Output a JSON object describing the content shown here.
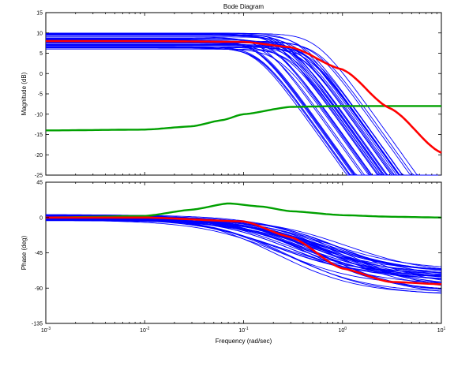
{
  "figure": {
    "title": "Bode Diagram",
    "xlabel": "Frequency  (rad/sec)"
  },
  "colors": {
    "nominal": "#ff0000",
    "ensemble": "#0000ff",
    "weight": "#00a000",
    "axes": "#000000",
    "background": "#ffffff"
  },
  "chart_data": [
    {
      "type": "line",
      "panel": "magnitude",
      "title": "Bode Diagram",
      "ylabel": "Magnitude (dB)",
      "xscale": "log",
      "xlim": [
        0.001,
        10
      ],
      "ylim": [
        -25,
        15
      ],
      "yticks": [
        -25,
        -20,
        -15,
        -10,
        -5,
        0,
        5,
        10,
        15
      ],
      "ytick_labels": [
        "-25",
        "-20",
        "-15",
        "-10",
        "-5",
        "0",
        "5",
        "10",
        "15"
      ],
      "grid": false,
      "ensemble": {
        "count": 40,
        "gain_range": [
          6,
          10
        ],
        "corner_range": [
          0.13,
          0.6
        ]
      },
      "series": [
        {
          "role": "nominal",
          "color": "#ff0000",
          "x": [
            0.001,
            0.01,
            0.1,
            0.3,
            1,
            3,
            10
          ],
          "y": [
            8,
            8,
            7.8,
            6.5,
            1,
            -8.5,
            -19.5
          ]
        },
        {
          "role": "weight",
          "color": "#00a000",
          "x": [
            0.001,
            0.01,
            0.03,
            0.06,
            0.1,
            0.3,
            1,
            3,
            10
          ],
          "y": [
            -14,
            -13.8,
            -13,
            -11.5,
            -10,
            -8.2,
            -8,
            -8,
            -8
          ]
        }
      ]
    },
    {
      "type": "line",
      "panel": "phase",
      "ylabel": "Phase (deg)",
      "xlabel": "Frequency  (rad/sec)",
      "xscale": "log",
      "xlim": [
        0.001,
        10
      ],
      "ylim": [
        -135,
        45
      ],
      "yticks": [
        -135,
        -90,
        -45,
        0,
        45
      ],
      "ytick_labels": [
        "-135",
        "-90",
        "-45",
        "0",
        "45"
      ],
      "xticks": [
        0.001,
        0.01,
        0.1,
        1,
        10
      ],
      "xtick_base": [
        "10",
        "10",
        "10",
        "10",
        "10"
      ],
      "xtick_exp": [
        "-3",
        "-2",
        "-1",
        "0",
        "1"
      ],
      "grid": false,
      "ensemble": {
        "count": 40,
        "lag_range": [
          65,
          100
        ],
        "offset_range": [
          -4,
          4
        ]
      },
      "series": [
        {
          "role": "nominal",
          "color": "#ff0000",
          "x": [
            0.001,
            0.01,
            0.1,
            0.3,
            1,
            3,
            10
          ],
          "y": [
            0,
            0,
            -5,
            -25,
            -65,
            -82,
            -85
          ]
        },
        {
          "role": "weight",
          "color": "#00a000",
          "x": [
            0.001,
            0.01,
            0.03,
            0.07,
            0.15,
            0.3,
            1,
            3,
            10
          ],
          "y": [
            0,
            2,
            10,
            18,
            14,
            8,
            3,
            1,
            0
          ]
        }
      ]
    }
  ]
}
